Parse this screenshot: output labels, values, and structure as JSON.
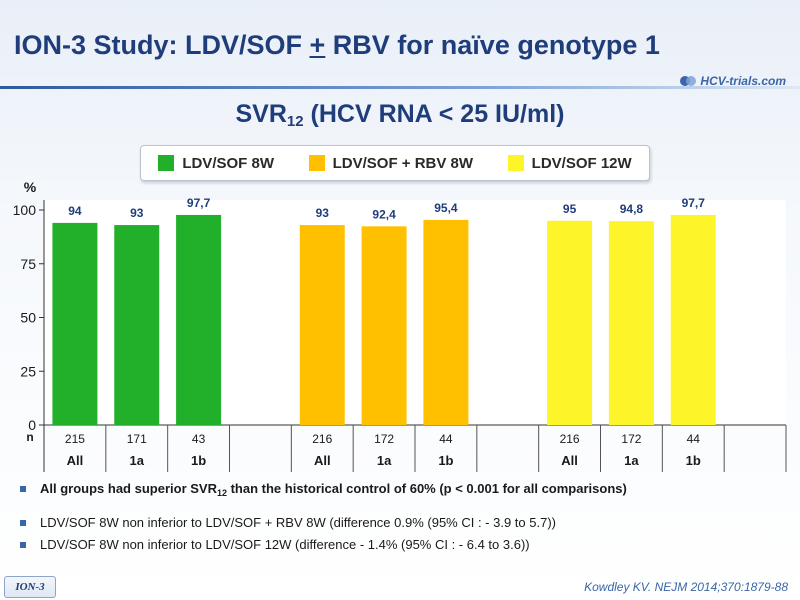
{
  "slide": {
    "title_before": "ION-3 Study: LDV/SOF ",
    "title_plus": "+",
    "title_after": " RBV for naïve genotype 1",
    "brand": "HCV-trials.com"
  },
  "heading": {
    "main": "SVR",
    "sub": "12",
    "rest": " (HCV RNA < 25 IU/ml)"
  },
  "colors": {
    "green": "#22b02b",
    "orange": "#ffc000",
    "yellow": "#fdf52a",
    "title": "#1f3d7a",
    "accent": "#3a66a8"
  },
  "chart_data": {
    "type": "bar",
    "ylabel": "%",
    "ylim": [
      0,
      100
    ],
    "yticks": [
      "0",
      "25",
      "50",
      "75",
      "100"
    ],
    "n_label": "n",
    "series": [
      {
        "name": "LDV/SOF 8W",
        "color": "#22b02b",
        "categories": [
          "All",
          "1a",
          "1b"
        ],
        "n": [
          "215",
          "171",
          "43"
        ],
        "values": [
          94,
          93,
          97.7
        ],
        "labels": [
          "94",
          "93",
          "97,7"
        ]
      },
      {
        "name": "LDV/SOF + RBV 8W",
        "color": "#ffc000",
        "categories": [
          "All",
          "1a",
          "1b"
        ],
        "n": [
          "216",
          "172",
          "44"
        ],
        "values": [
          93,
          92.4,
          95.4
        ],
        "labels": [
          "93",
          "92,4",
          "95,4"
        ]
      },
      {
        "name": "LDV/SOF 12W",
        "color": "#fdf52a",
        "categories": [
          "All",
          "1a",
          "1b"
        ],
        "n": [
          "216",
          "172",
          "44"
        ],
        "values": [
          95,
          94.8,
          97.7
        ],
        "labels": [
          "95",
          "94,8",
          "97,7"
        ]
      }
    ]
  },
  "bullets": {
    "b1_before": "All groups had superior SVR",
    "b1_sub": "12",
    "b1_after": " than the historical control of 60% (p < 0.001 for all comparisons)",
    "b2": "LDV/SOF 8W non inferior to LDV/SOF + RBV 8W (difference 0.9% (95% CI : - 3.9 to 5.7))",
    "b3": "LDV/SOF 8W non inferior to LDV/SOF 12W (difference - 1.4% (95% CI : - 6.4 to 3.6))"
  },
  "footer": {
    "badge": "ION-3",
    "citation": "Kowdley KV. NEJM 2014;370:1879-88"
  }
}
